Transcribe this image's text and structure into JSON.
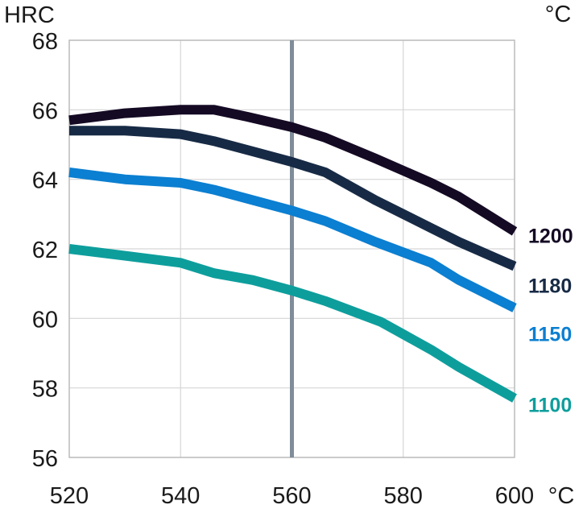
{
  "chart_data": {
    "type": "line",
    "y_unit": "HRC",
    "x_unit": "°C",
    "legend_unit": "°C",
    "x_ticks": [
      "520",
      "540",
      "560",
      "580",
      "600"
    ],
    "y_ticks": [
      "68",
      "66",
      "64",
      "62",
      "60",
      "58",
      "56"
    ],
    "xlim": [
      520,
      600
    ],
    "ylim": [
      56,
      68
    ],
    "grid": true,
    "reference_line_x": 560,
    "series": [
      {
        "name": "1200",
        "color": "#150a24",
        "x": [
          520,
          530,
          540,
          546,
          552,
          560,
          566,
          575,
          585,
          590,
          600
        ],
        "y": [
          65.7,
          65.9,
          66.0,
          66.0,
          65.8,
          65.5,
          65.2,
          64.6,
          63.9,
          63.5,
          62.5
        ]
      },
      {
        "name": "1180",
        "color": "#172a45",
        "x": [
          520,
          530,
          540,
          546,
          553,
          560,
          566,
          575,
          585,
          590,
          600
        ],
        "y": [
          65.4,
          65.4,
          65.3,
          65.1,
          64.8,
          64.5,
          64.2,
          63.4,
          62.6,
          62.2,
          61.5
        ]
      },
      {
        "name": "1150",
        "color": "#0b7fd1",
        "x": [
          520,
          530,
          540,
          546,
          553,
          560,
          566,
          575,
          585,
          590,
          600
        ],
        "y": [
          64.2,
          64.0,
          63.9,
          63.7,
          63.4,
          63.1,
          62.8,
          62.2,
          61.6,
          61.1,
          60.3
        ]
      },
      {
        "name": "1100",
        "color": "#0d9e9c",
        "x": [
          520,
          530,
          540,
          546,
          553,
          560,
          566,
          576,
          585,
          590,
          600
        ],
        "y": [
          62.0,
          61.8,
          61.6,
          61.3,
          61.1,
          60.8,
          60.5,
          59.9,
          59.1,
          58.6,
          57.7
        ]
      }
    ]
  }
}
